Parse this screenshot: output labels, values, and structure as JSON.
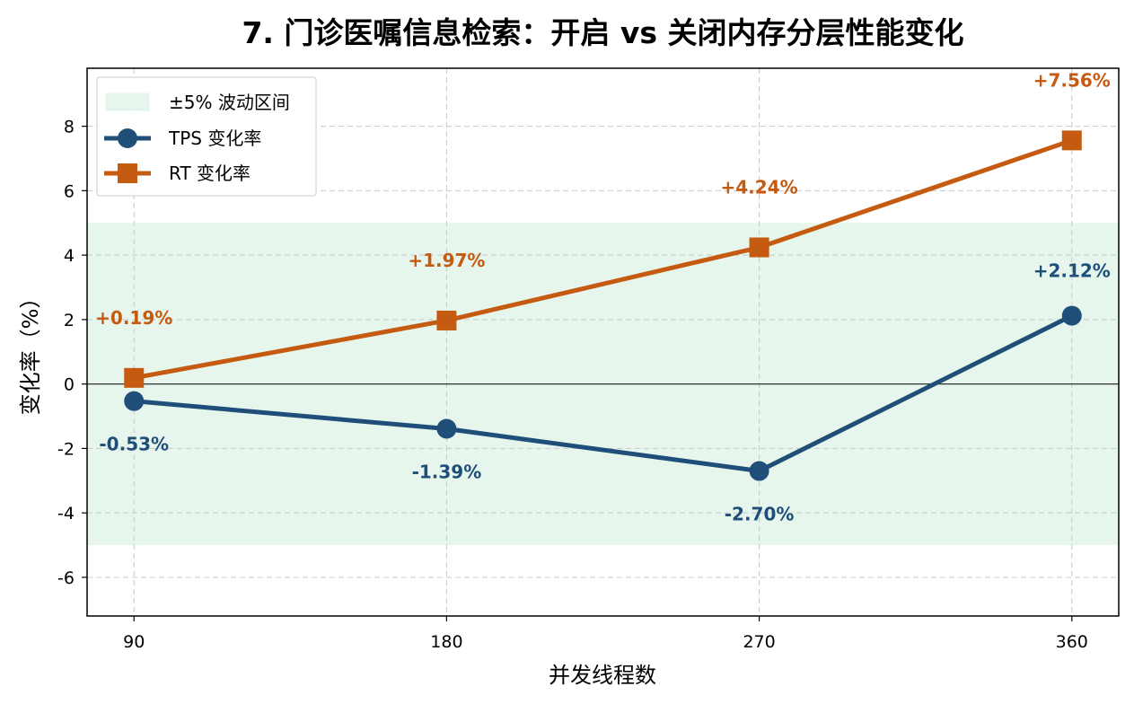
{
  "chart_data": {
    "type": "line",
    "title": "7. 门诊医嘱信息检索：开启 vs 关闭内存分层性能变化",
    "xlabel": "并发线程数",
    "ylabel": "变化率（%）",
    "categories": [
      "90",
      "180",
      "270",
      "360"
    ],
    "x": [
      90,
      180,
      270,
      360
    ],
    "xlim": [
      76.5,
      373.5
    ],
    "ylim": [
      -7.2,
      9.8
    ],
    "yticks": [
      -6,
      -4,
      -2,
      0,
      2,
      4,
      6,
      8
    ],
    "ytick_labels": [
      "-6",
      "-4",
      "-2",
      "0",
      "2",
      "4",
      "6",
      "8"
    ],
    "grid": true,
    "legend_position": "top-left",
    "band": {
      "label": "±5% 波动区间",
      "from": -5,
      "to": 5,
      "color": "#e6f6ec"
    },
    "series": [
      {
        "name": "TPS 变化率",
        "values": [
          -0.53,
          -1.39,
          -2.7,
          2.12
        ],
        "labels": [
          "-0.53%",
          "-1.39%",
          "-2.70%",
          "+2.12%"
        ],
        "color": "#1f4e79",
        "marker": "circle"
      },
      {
        "name": "RT 变化率",
        "values": [
          0.19,
          1.97,
          4.24,
          7.56
        ],
        "labels": [
          "+0.19%",
          "+1.97%",
          "+4.24%",
          "+7.56%"
        ],
        "color": "#c55a11",
        "marker": "square"
      }
    ]
  }
}
